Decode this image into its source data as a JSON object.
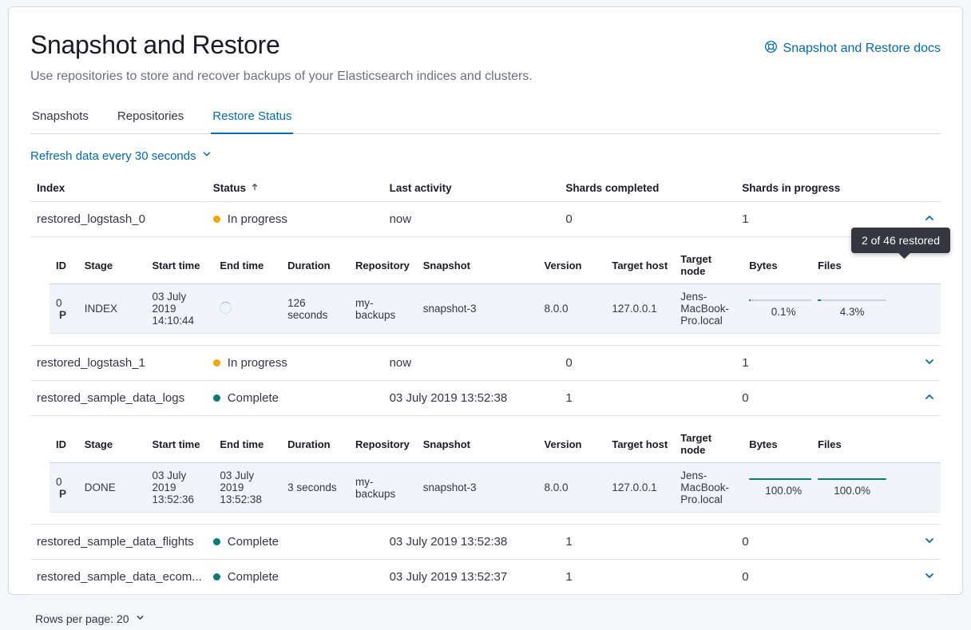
{
  "page": {
    "title": "Snapshot and Restore",
    "subtitle": "Use repositories to store and recover backups of your Elasticsearch indices and clusters.",
    "docs_link_label": "Snapshot and Restore docs",
    "refresh_label": "Refresh data every 30 seconds"
  },
  "tabs": [
    {
      "label": "Snapshots",
      "active": false
    },
    {
      "label": "Repositories",
      "active": false
    },
    {
      "label": "Restore Status",
      "active": true
    }
  ],
  "colors": {
    "accent_blue": "#006BB4",
    "success_teal": "#017D73",
    "warning_orange": "#F5A700",
    "tooltip_bg": "#343741"
  },
  "table": {
    "columns": [
      {
        "label": "Index"
      },
      {
        "label": "Status",
        "sorted": "asc"
      },
      {
        "label": "Last activity"
      },
      {
        "label": "Shards completed"
      },
      {
        "label": "Shards in progress"
      }
    ],
    "rows": [
      {
        "index": "restored_logstash_0",
        "status": "In progress",
        "status_type": "warning",
        "last_activity": "now",
        "shards_completed": "0",
        "shards_in_progress": "1",
        "expanded": true,
        "details": {
          "id": "0",
          "shard": "P",
          "stage": "INDEX",
          "start_time": "03 July 2019 14:10:44",
          "end_time": "",
          "loading": true,
          "duration": "126 seconds",
          "repository": "my-backups",
          "snapshot": "snapshot-3",
          "version": "8.0.0",
          "target_host": "127.0.0.1",
          "target_node": "Jens-MacBook-Pro.local",
          "bytes_label": "0.1%",
          "bytes_percent": 0.1,
          "files_label": "4.3%",
          "files_percent": 4.3,
          "tooltip": "2 of 46 restored"
        }
      },
      {
        "index": "restored_logstash_1",
        "status": "In progress",
        "status_type": "warning",
        "last_activity": "now",
        "shards_completed": "0",
        "shards_in_progress": "1",
        "expanded": false
      },
      {
        "index": "restored_sample_data_logs",
        "status": "Complete",
        "status_type": "success",
        "last_activity": "03 July 2019 13:52:38",
        "shards_completed": "1",
        "shards_in_progress": "0",
        "expanded": true,
        "details": {
          "id": "0",
          "shard": "P",
          "stage": "DONE",
          "start_time": "03 July 2019 13:52:36",
          "end_time": "03 July 2019 13:52:38",
          "loading": false,
          "duration": "3 seconds",
          "repository": "my-backups",
          "snapshot": "snapshot-3",
          "version": "8.0.0",
          "target_host": "127.0.0.1",
          "target_node": "Jens-MacBook-Pro.local",
          "bytes_label": "100.0%",
          "bytes_percent": 100,
          "files_label": "100.0%",
          "files_percent": 100
        }
      },
      {
        "index": "restored_sample_data_flights",
        "status": "Complete",
        "status_type": "success",
        "last_activity": "03 July 2019 13:52:38",
        "shards_completed": "1",
        "shards_in_progress": "0",
        "expanded": false
      },
      {
        "index": "restored_sample_data_ecom...",
        "status": "Complete",
        "status_type": "success",
        "last_activity": "03 July 2019 13:52:37",
        "shards_completed": "1",
        "shards_in_progress": "0",
        "expanded": false
      }
    ]
  },
  "detail_columns": [
    "ID",
    "Stage",
    "Start time",
    "End time",
    "Duration",
    "Repository",
    "Snapshot",
    "Version",
    "Target host",
    "Target node",
    "Bytes",
    "Files"
  ],
  "pagination": {
    "label": "Rows per page: 20"
  }
}
